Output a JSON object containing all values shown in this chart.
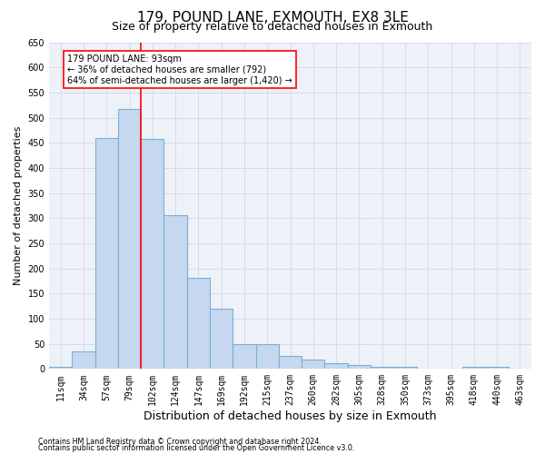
{
  "title": "179, POUND LANE, EXMOUTH, EX8 3LE",
  "subtitle": "Size of property relative to detached houses in Exmouth",
  "xlabel": "Distribution of detached houses by size in Exmouth",
  "ylabel": "Number of detached properties",
  "categories": [
    "11sqm",
    "34sqm",
    "57sqm",
    "79sqm",
    "102sqm",
    "124sqm",
    "147sqm",
    "169sqm",
    "192sqm",
    "215sqm",
    "237sqm",
    "260sqm",
    "282sqm",
    "305sqm",
    "328sqm",
    "350sqm",
    "373sqm",
    "395sqm",
    "418sqm",
    "440sqm",
    "463sqm"
  ],
  "values": [
    5,
    35,
    460,
    518,
    458,
    305,
    181,
    119,
    50,
    50,
    26,
    18,
    12,
    8,
    4,
    4,
    1,
    0,
    4,
    5,
    1
  ],
  "bar_color": "#c5d8f0",
  "bar_edge_color": "#7bafd4",
  "vline_x_index": 3.5,
  "vline_color": "red",
  "annotation_text": "179 POUND LANE: 93sqm\n← 36% of detached houses are smaller (792)\n64% of semi-detached houses are larger (1,420) →",
  "annotation_box_color": "white",
  "annotation_box_edge_color": "red",
  "ylim": [
    0,
    650
  ],
  "yticks": [
    0,
    50,
    100,
    150,
    200,
    250,
    300,
    350,
    400,
    450,
    500,
    550,
    600,
    650
  ],
  "grid_color": "#d0d8e8",
  "background_color": "#eef2f8",
  "footer1": "Contains HM Land Registry data © Crown copyright and database right 2024.",
  "footer2": "Contains public sector information licensed under the Open Government Licence v3.0.",
  "title_fontsize": 11,
  "subtitle_fontsize": 9,
  "xlabel_fontsize": 9,
  "ylabel_fontsize": 8,
  "annotation_fontsize": 7,
  "tick_fontsize": 7
}
